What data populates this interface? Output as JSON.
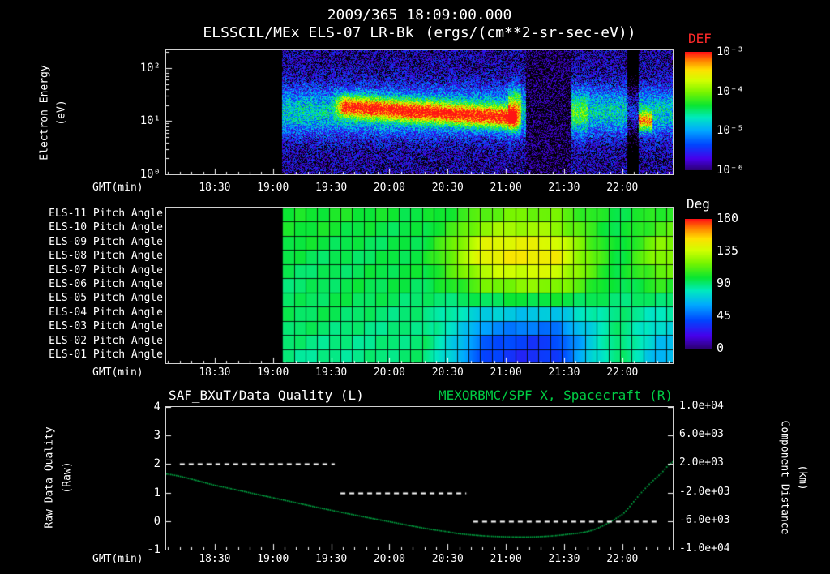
{
  "colors": {
    "background": "#000000",
    "text": "#ffffff",
    "def_label": "#ff2a2a",
    "right_title": "#00cc44",
    "spacecraft_curve": "#00a843",
    "quality_line": "#ffffff"
  },
  "header": {
    "timestamp": "2009/365 18:09:00.000"
  },
  "chart_data": [
    {
      "type": "heatmap",
      "name": "electron-energy-spectrogram",
      "title": "ELSSCIL/MEx ELS-07 LR-Bk",
      "units": "(ergs/(cm**2-sr-sec-eV))",
      "xlabel": "GMT(min)",
      "x_tick_labels": [
        "18:30",
        "19:00",
        "19:30",
        "20:00",
        "20:30",
        "21:00",
        "21:30",
        "22:00"
      ],
      "x_tick_hours": [
        18.5,
        19.0,
        19.5,
        20.0,
        20.5,
        21.0,
        21.5,
        22.0
      ],
      "x_range_hours": [
        18.083,
        22.433
      ],
      "ylabel": "Electron Energy",
      "ylabel_units": "(eV)",
      "y_scale": "log",
      "y_range_ev": [
        1,
        215
      ],
      "y_tick_labels": [
        "10²",
        "10¹",
        "10⁰"
      ],
      "colorbar": {
        "label": "DEF",
        "tick_labels": [
          "10⁻³",
          "10⁻⁴",
          "10⁻⁵",
          "10⁻⁶"
        ],
        "log10_range": [
          -6,
          -3
        ]
      },
      "data_start_hour": 19.08,
      "features": {
        "background_log10_def": -5.9,
        "low_energy_band": {
          "energy_ev": [
            5,
            45
          ],
          "peak_log10_def": -4.8
        },
        "intense_band": {
          "hours": [
            19.5,
            21.13
          ],
          "energy_ev": [
            8,
            30
          ],
          "peak_log10_def": -3.4
        },
        "pre_dropout_streak_hour": 21.02,
        "dropout_hours": [
          21.17,
          21.56
        ],
        "post_dropout_enhancement_hours": [
          21.56,
          21.7
        ],
        "late_gap_hours": [
          22.04,
          22.14
        ],
        "late_enhancement": {
          "hours": [
            22.14,
            22.26
          ],
          "energy_ev": [
            7,
            14
          ],
          "peak_log10_def": -4.2
        }
      }
    },
    {
      "type": "heatmap",
      "name": "pitch-angle-panels",
      "xlabel": "GMT(min)",
      "x_tick_labels": [
        "18:30",
        "19:00",
        "19:30",
        "20:00",
        "20:30",
        "21:00",
        "21:30",
        "22:00"
      ],
      "x_tick_hours": [
        18.5,
        19.0,
        19.5,
        20.0,
        20.5,
        21.0,
        21.5,
        22.0
      ],
      "x_range_hours": [
        18.083,
        22.433
      ],
      "row_labels": [
        "ELS-11 Pitch Angle",
        "ELS-10 Pitch Angle",
        "ELS-09 Pitch Angle",
        "ELS-08 Pitch Angle",
        "ELS-07 Pitch Angle",
        "ELS-06 Pitch Angle",
        "ELS-05 Pitch Angle",
        "ELS-04 Pitch Angle",
        "ELS-03 Pitch Angle",
        "ELS-02 Pitch Angle",
        "ELS-01 Pitch Angle"
      ],
      "colorbar": {
        "label": "Deg",
        "tick_labels": [
          "180",
          "135",
          "90",
          "45",
          "0"
        ],
        "range_deg": [
          0,
          180
        ]
      },
      "data_start_hour": 19.08,
      "base_deg": 95,
      "row_amplitude": [
        0.3,
        0.5,
        0.85,
        1.0,
        0.8,
        0.5,
        0.05,
        -0.45,
        -0.75,
        -0.95,
        -1.0
      ],
      "anisotropy": {
        "hours": [
          20.3,
          21.95
        ],
        "peak_hour": 21.2,
        "max_offset_deg": 55
      },
      "late_offset": {
        "start_hour": 22.0,
        "max_offset_deg": 25
      },
      "grid": {
        "column_minutes": 6,
        "rows": 11
      }
    },
    {
      "type": "line",
      "name": "quality-and-distance",
      "title_left": "SAF_BXuT/Data Quality (L)",
      "title_right": "MEXORBMC/SPF X, Spacecraft (R)",
      "xlabel": "GMT(min)",
      "x_tick_labels": [
        "18:30",
        "19:00",
        "19:30",
        "20:00",
        "20:30",
        "21:00",
        "21:30",
        "22:00"
      ],
      "x_tick_hours": [
        18.5,
        19.0,
        19.5,
        20.0,
        20.5,
        21.0,
        21.5,
        22.0
      ],
      "x_range_hours": [
        18.083,
        22.433
      ],
      "y_left": {
        "label": "Raw Data Quality",
        "units": "(Raw)",
        "tick_labels": [
          "4",
          "3",
          "2",
          "1",
          "0",
          "-1"
        ],
        "range": [
          -1,
          4
        ]
      },
      "y_right": {
        "label": "Component Distance",
        "units": "(km)",
        "tick_labels": [
          "1.0e+04",
          "6.0e+03",
          "2.0e+03",
          "-2.0e+03",
          "-6.0e+03",
          "-1.0e+04"
        ],
        "range": [
          -10000,
          10000
        ]
      },
      "series": [
        {
          "name": "SAF_BXuT/Data Quality",
          "axis": "left",
          "style": "dashed",
          "color": "#ffffff",
          "segments": [
            {
              "hours": [
                18.2,
                19.53
              ],
              "value": 2
            },
            {
              "hours": [
                19.58,
                20.66
              ],
              "value": 1
            },
            {
              "hours": [
                20.72,
                22.32
              ],
              "value": 0
            }
          ]
        },
        {
          "name": "MEXORBMC/SPF X Spacecraft",
          "axis": "right",
          "style": "dotted",
          "color": "#00a843",
          "points_hour_km": [
            [
              18.08,
              700
            ],
            [
              18.5,
              -900
            ],
            [
              19.0,
              -2650
            ],
            [
              19.5,
              -4400
            ],
            [
              20.0,
              -6000
            ],
            [
              20.5,
              -7400
            ],
            [
              20.75,
              -7900
            ],
            [
              21.0,
              -8100
            ],
            [
              21.25,
              -8100
            ],
            [
              21.5,
              -7800
            ],
            [
              21.75,
              -7100
            ],
            [
              22.0,
              -4900
            ],
            [
              22.17,
              -1700
            ],
            [
              22.33,
              800
            ],
            [
              22.43,
              2400
            ]
          ]
        }
      ]
    }
  ]
}
